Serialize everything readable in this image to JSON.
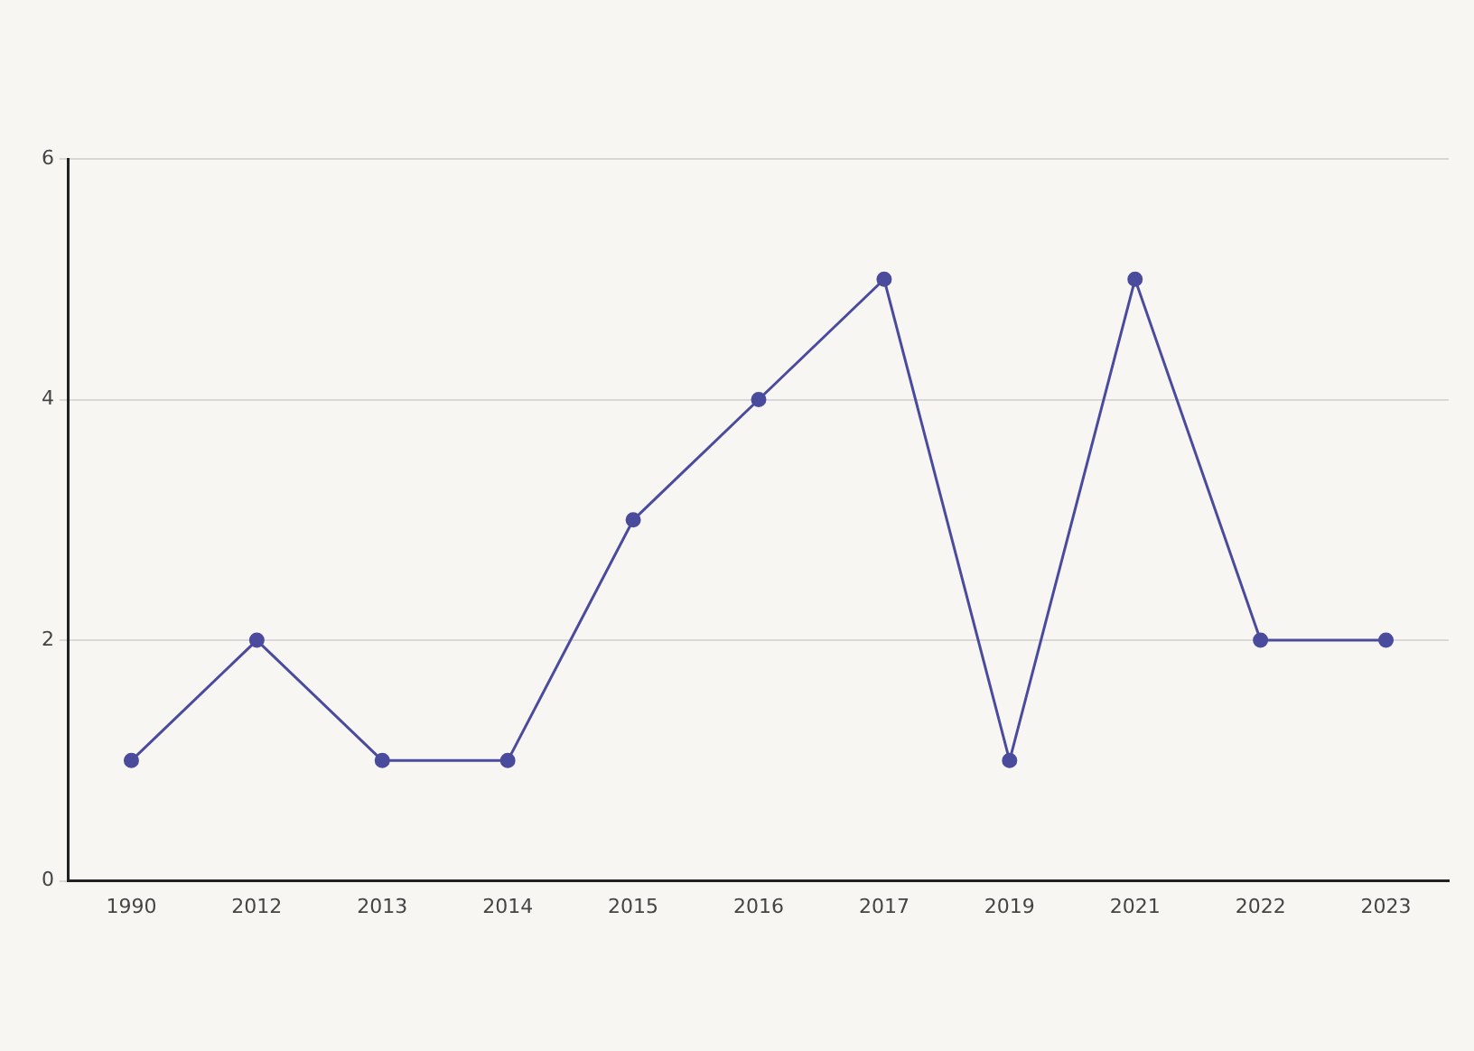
{
  "chart_data": {
    "type": "line",
    "categories": [
      "1990",
      "2012",
      "2013",
      "2014",
      "2015",
      "2016",
      "2017",
      "2019",
      "2021",
      "2022",
      "2023"
    ],
    "series": [
      {
        "color": "#4b4b9e",
        "values": [
          1,
          2,
          1,
          1,
          3,
          4,
          5,
          1,
          5,
          2,
          2
        ]
      }
    ],
    "ylim": [
      0,
      6
    ],
    "yticks": [
      0,
      2,
      4,
      6
    ],
    "grid": "y",
    "legend": false,
    "marker": "circle",
    "line_style": "solid"
  }
}
